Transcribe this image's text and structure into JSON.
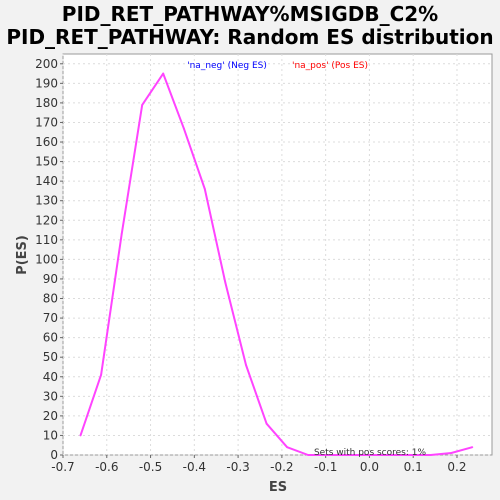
{
  "chart_data": {
    "type": "line",
    "title": "PID_RET_PATHWAY%MSIGDB_C2%",
    "subtitle": "PID_RET_PATHWAY: Random ES distribution",
    "xlabel": "ES",
    "ylabel": "P(ES)",
    "xlim": [
      -0.7,
      0.28
    ],
    "ylim": [
      0,
      205
    ],
    "x_ticks": [
      -0.7,
      -0.6,
      -0.5,
      -0.4,
      -0.3,
      -0.2,
      -0.1,
      0.0,
      0.1,
      0.2
    ],
    "x_tick_labels": [
      "-0.7",
      "-0.6",
      "-0.5",
      "-0.4",
      "-0.3",
      "-0.2",
      "-0.1",
      "0.0",
      "0.1",
      "0.2"
    ],
    "y_ticks": [
      0,
      10,
      20,
      30,
      40,
      50,
      60,
      70,
      80,
      90,
      100,
      110,
      120,
      130,
      140,
      150,
      160,
      170,
      180,
      190,
      200
    ],
    "grid": true,
    "legend": [
      {
        "label": "'na_neg' (Neg ES)",
        "color": "#0000ff"
      },
      {
        "label": "'na_pos' (Pos ES)",
        "color": "#ff0000"
      }
    ],
    "legend_placement": "top-center",
    "annotation": "Sets with pos scores: 1%",
    "series": [
      {
        "color": "#ff44ff",
        "points": [
          [
            -0.66,
            10
          ],
          [
            -0.613,
            41
          ],
          [
            -0.566,
            113
          ],
          [
            -0.519,
            179
          ],
          [
            -0.471,
            195
          ],
          [
            -0.424,
            167
          ],
          [
            -0.376,
            136
          ],
          [
            -0.329,
            88
          ],
          [
            -0.282,
            46
          ],
          [
            -0.235,
            16
          ],
          [
            -0.188,
            4
          ],
          [
            -0.14,
            0
          ],
          [
            0.0,
            0
          ],
          [
            0.14,
            0
          ],
          [
            0.187,
            1
          ],
          [
            0.235,
            4
          ]
        ]
      }
    ]
  }
}
